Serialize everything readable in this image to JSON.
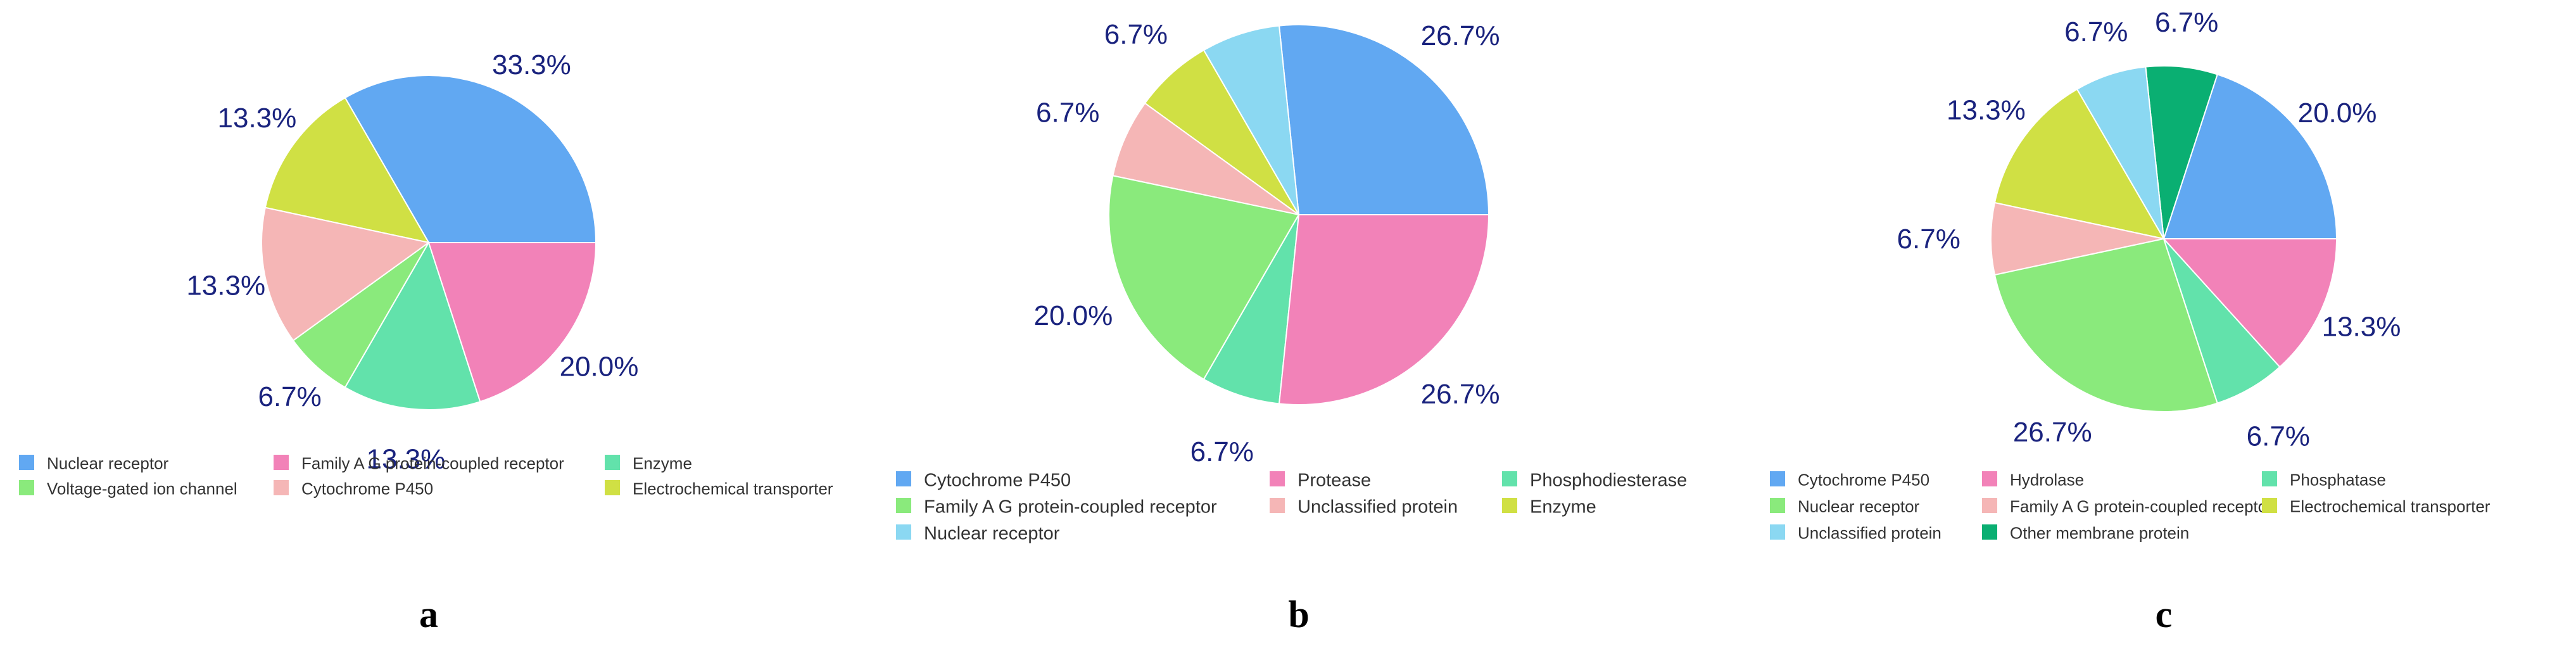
{
  "colors": {
    "cytochrome": "#61a8f2",
    "pink": "#f282b8",
    "mint": "#62e2ab",
    "green": "#8aea7c",
    "salmon": "#f5b6b6",
    "olive": "#d0e044",
    "sky": "#8bd8f2",
    "teal": "#0aaf72",
    "percent_text": "#1a237e"
  },
  "chart_data": [
    {
      "type": "pie",
      "panel_label": "a",
      "slices": [
        {
          "name": "Nuclear receptor",
          "value": 33.3,
          "label": "33.3%",
          "color": "#61a8f2"
        },
        {
          "name": "Electrochemical transporter",
          "value": 13.3,
          "label": "13.3%",
          "color": "#d0e044"
        },
        {
          "name": "Cytochrome P450",
          "value": 13.3,
          "label": "13.3%",
          "color": "#f5b6b6"
        },
        {
          "name": "Voltage-gated ion channel",
          "value": 6.7,
          "label": "6.7%",
          "color": "#8aea7c"
        },
        {
          "name": "Enzyme",
          "value": 13.3,
          "label": "13.3%",
          "color": "#62e2ab"
        },
        {
          "name": "Family A G protein-coupled receptor",
          "value": 20.0,
          "label": "20.0%",
          "color": "#f282b8"
        }
      ],
      "legend": [
        {
          "name": "Nuclear receptor",
          "color": "#61a8f2"
        },
        {
          "name": "Family A G protein-coupled receptor",
          "color": "#f282b8"
        },
        {
          "name": "Enzyme",
          "color": "#62e2ab"
        },
        {
          "name": "Voltage-gated ion channel",
          "color": "#8aea7c"
        },
        {
          "name": "Cytochrome P450",
          "color": "#f5b6b6"
        },
        {
          "name": "Electrochemical transporter",
          "color": "#d0e044"
        }
      ],
      "legend_placement": "bottom"
    },
    {
      "type": "pie",
      "panel_label": "b",
      "slices": [
        {
          "name": "Cytochrome P450",
          "value": 26.7,
          "label": "26.7%",
          "color": "#61a8f2"
        },
        {
          "name": "Nuclear receptor",
          "value": 6.7,
          "label": "6.7%",
          "color": "#8bd8f2"
        },
        {
          "name": "Enzyme",
          "value": 6.7,
          "label": "6.7%",
          "color": "#d0e044"
        },
        {
          "name": "Unclassified protein",
          "value": 6.7,
          "label": "6.7%",
          "color": "#f5b6b6"
        },
        {
          "name": "Family A G protein-coupled receptor",
          "value": 20.0,
          "label": "20.0%",
          "color": "#8aea7c"
        },
        {
          "name": "Phosphodiesterase",
          "value": 6.7,
          "label": "6.7%",
          "color": "#62e2ab"
        },
        {
          "name": "Protease",
          "value": 26.7,
          "label": "26.7%",
          "color": "#f282b8"
        }
      ],
      "legend": [
        {
          "name": "Cytochrome P450",
          "color": "#61a8f2"
        },
        {
          "name": "Protease",
          "color": "#f282b8"
        },
        {
          "name": "Phosphodiesterase",
          "color": "#62e2ab"
        },
        {
          "name": "Family A G protein-coupled receptor",
          "color": "#8aea7c"
        },
        {
          "name": "Unclassified protein",
          "color": "#f5b6b6"
        },
        {
          "name": "Enzyme",
          "color": "#d0e044"
        },
        {
          "name": "Nuclear receptor",
          "color": "#8bd8f2"
        }
      ],
      "legend_placement": "bottom"
    },
    {
      "type": "pie",
      "panel_label": "c",
      "slices": [
        {
          "name": "Cytochrome P450",
          "value": 20.0,
          "label": "20.0%",
          "color": "#61a8f2"
        },
        {
          "name": "Other membrane protein",
          "value": 6.7,
          "label": "6.7%",
          "color": "#0aaf72"
        },
        {
          "name": "Unclassified protein",
          "value": 6.7,
          "label": "6.7%",
          "color": "#8bd8f2"
        },
        {
          "name": "Electrochemical transporter",
          "value": 13.3,
          "label": "13.3%",
          "color": "#d0e044"
        },
        {
          "name": "Family A G protein-coupled receptor",
          "value": 6.7,
          "label": "6.7%",
          "color": "#f5b6b6"
        },
        {
          "name": "Nuclear receptor",
          "value": 26.7,
          "label": "26.7%",
          "color": "#8aea7c"
        },
        {
          "name": "Phosphatase",
          "value": 6.7,
          "label": "6.7%",
          "color": "#62e2ab"
        },
        {
          "name": "Hydrolase",
          "value": 13.3,
          "label": "13.3%",
          "color": "#f282b8"
        }
      ],
      "legend": [
        {
          "name": "Cytochrome P450",
          "color": "#61a8f2"
        },
        {
          "name": "Hydrolase",
          "color": "#f282b8"
        },
        {
          "name": "Phosphatase",
          "color": "#62e2ab"
        },
        {
          "name": "Nuclear receptor",
          "color": "#8aea7c"
        },
        {
          "name": "Family A G protein-coupled receptor",
          "color": "#f5b6b6"
        },
        {
          "name": "Electrochemical transporter",
          "color": "#d0e044"
        },
        {
          "name": "Unclassified protein",
          "color": "#8bd8f2"
        },
        {
          "name": "Other membrane protein",
          "color": "#0aaf72"
        }
      ],
      "legend_placement": "bottom"
    }
  ]
}
